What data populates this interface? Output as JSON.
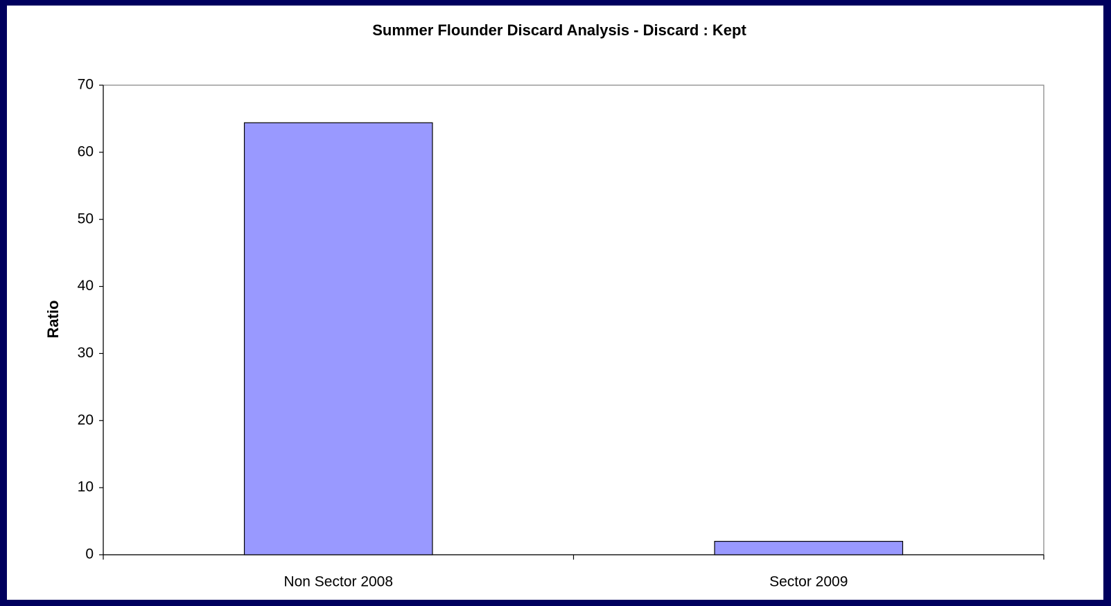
{
  "chart_data": {
    "type": "bar",
    "title": "Summer Flounder Discard Analysis - Discard : Kept",
    "y_label": "Ratio",
    "categories": [
      "Non Sector 2008",
      "Sector 2009"
    ],
    "values": [
      64.4,
      2.0
    ],
    "color": "#9999ff",
    "ylim": [
      0,
      70
    ],
    "yticks": [
      0,
      10,
      20,
      30,
      40,
      50,
      60,
      70
    ],
    "grid": false
  }
}
